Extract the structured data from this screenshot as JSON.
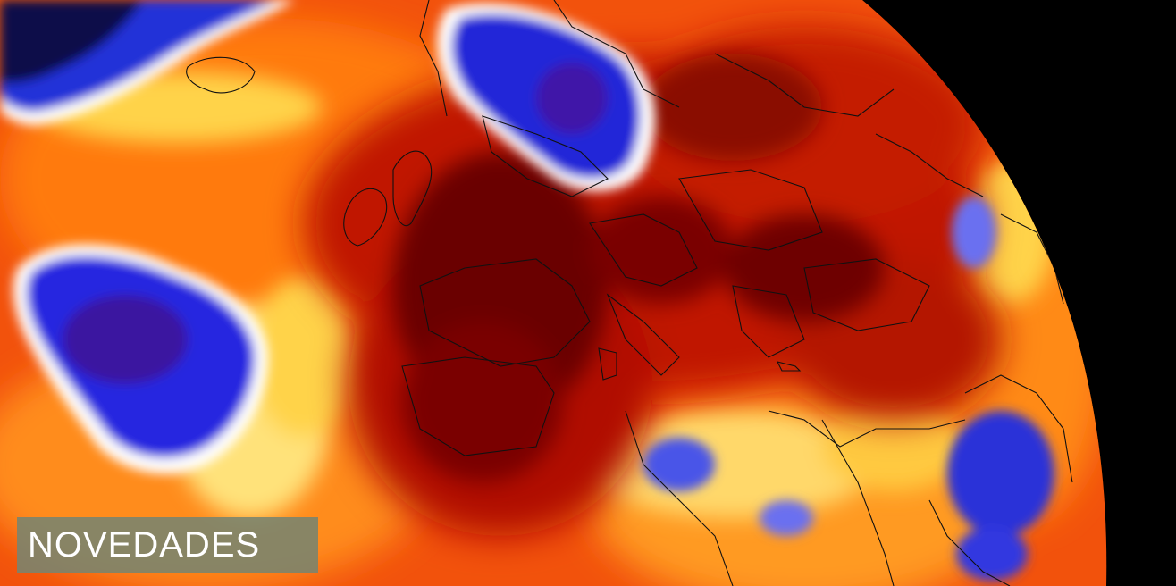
{
  "banner": {
    "badge_label": "NOVEDADES"
  },
  "image": {
    "subject": "heatmap-globe",
    "colors": {
      "space": "#000000",
      "hot_darkest": "#5a0000",
      "hot_dark": "#a80c00",
      "hot": "#e8300a",
      "warm": "#ff7a10",
      "mild": "#ffd34a",
      "cool": "#ffffff",
      "cold": "#1c22d8",
      "coldest": "#3a0f7a",
      "borders": "#111111",
      "badge_background": "#788470",
      "badge_text": "#ffffff"
    }
  }
}
